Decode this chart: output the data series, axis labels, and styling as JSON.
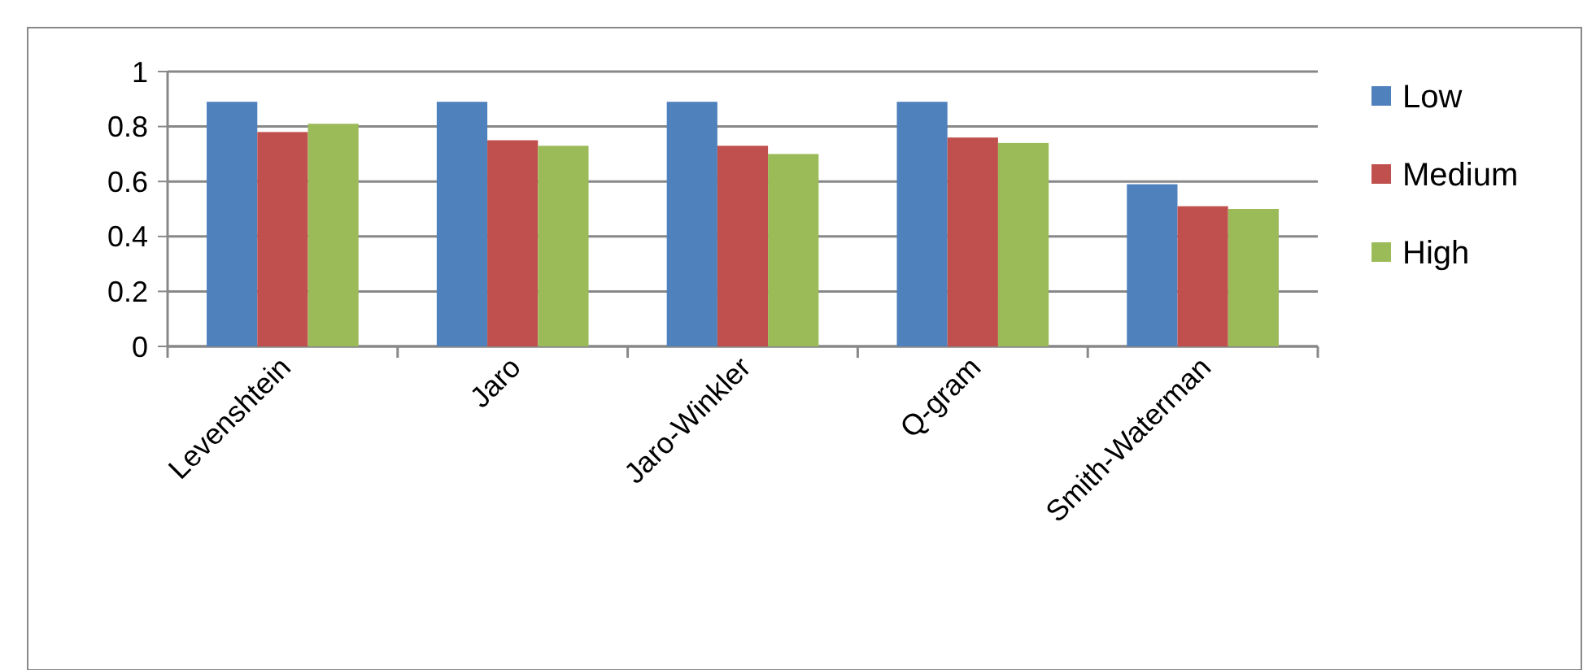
{
  "chart_data": {
    "type": "bar",
    "categories": [
      "Levenshtein",
      "Jaro",
      "Jaro-Winkler",
      "Q-gram",
      "Smith-Waterman"
    ],
    "series": [
      {
        "name": "Low",
        "color": "#4f81bd",
        "values": [
          0.89,
          0.89,
          0.89,
          0.89,
          0.59
        ]
      },
      {
        "name": "Medium",
        "color": "#c0504d",
        "values": [
          0.78,
          0.75,
          0.73,
          0.76,
          0.51
        ]
      },
      {
        "name": "High",
        "color": "#9bbb59",
        "values": [
          0.81,
          0.73,
          0.7,
          0.74,
          0.5
        ]
      }
    ],
    "ylim": [
      0,
      1
    ],
    "yticks": [
      0,
      0.2,
      0.4,
      0.6,
      0.8,
      1
    ],
    "grid": "y",
    "legend": "right"
  }
}
